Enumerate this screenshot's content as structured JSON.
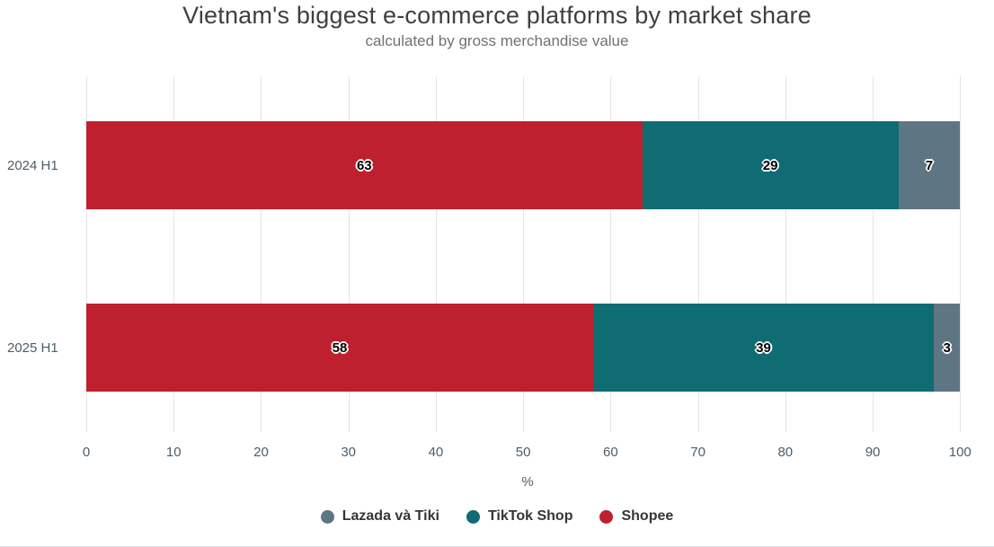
{
  "header": {
    "title": "Vietnam's biggest e-commerce platforms by market share",
    "subtitle": "calculated by gross merchandise value"
  },
  "chart_data": {
    "type": "bar",
    "orientation": "horizontal",
    "stacked": true,
    "title": "Vietnam's biggest e-commerce platforms by market share",
    "subtitle": "calculated by gross merchandise value",
    "categories": [
      "2024 H1",
      "2025 H1"
    ],
    "series": [
      {
        "name": "Shopee",
        "color": "#bf202e",
        "values": [
          63,
          58
        ]
      },
      {
        "name": "TikTok Shop",
        "color": "#0e6c72",
        "values": [
          29,
          39
        ]
      },
      {
        "name": "Lazada và Tiki",
        "color": "#5e7584",
        "values": [
          7,
          3
        ]
      }
    ],
    "xlabel": "%",
    "xlim": [
      0,
      101
    ],
    "xticks": [
      0,
      10,
      20,
      30,
      40,
      50,
      60,
      70,
      80,
      90,
      100
    ],
    "grid": "vertical",
    "legend_position": "bottom",
    "legend_order": [
      "Lazada và Tiki",
      "TikTok Shop",
      "Shopee"
    ]
  }
}
